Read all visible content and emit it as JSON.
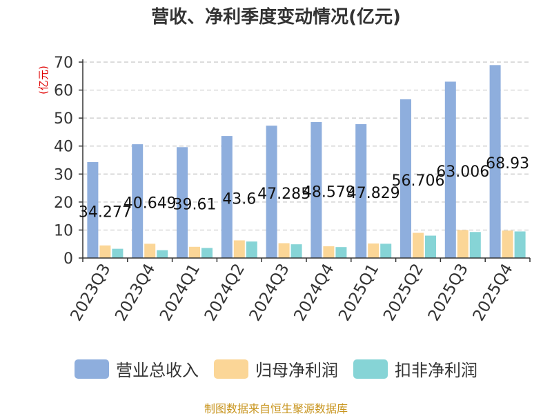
{
  "title": "营收、净利季度变动情况(亿元)",
  "source_note": "制图数据来自恒生聚源数据库",
  "chart_data": {
    "type": "bar",
    "title": "营收、净利季度变动情况(亿元)",
    "ylabel": "(亿元)",
    "xlabel": "",
    "ylim": [
      0,
      70
    ],
    "yticks": [
      0,
      10,
      20,
      30,
      40,
      50,
      60,
      70
    ],
    "grid": true,
    "legend_position": "bottom",
    "categories": [
      "2023Q3",
      "2023Q4",
      "2024Q1",
      "2024Q2",
      "2024Q3",
      "2024Q4",
      "2025Q1",
      "2025Q2",
      "2025Q3",
      "2025Q4"
    ],
    "series": [
      {
        "name": "营业总收入",
        "color": "#8eaedd",
        "values": [
          34.277,
          40.649,
          39.61,
          43.6,
          47.285,
          48.579,
          47.829,
          56.706,
          63.006,
          68.93
        ],
        "data_labels": [
          "34.277",
          "40.649",
          "39.61",
          "43.6",
          "47.285",
          "48.579",
          "47.829",
          "56.706",
          "63.006",
          "68.93"
        ]
      },
      {
        "name": "归母净利润",
        "color": "#fbd697",
        "values": [
          4.5,
          5.1,
          4.0,
          6.3,
          5.3,
          4.2,
          5.2,
          9.0,
          10.0,
          9.8
        ]
      },
      {
        "name": "扣非净利润",
        "color": "#86d4d6",
        "values": [
          3.3,
          2.8,
          3.6,
          5.9,
          4.9,
          3.9,
          5.1,
          8.0,
          9.3,
          9.5
        ]
      }
    ]
  }
}
